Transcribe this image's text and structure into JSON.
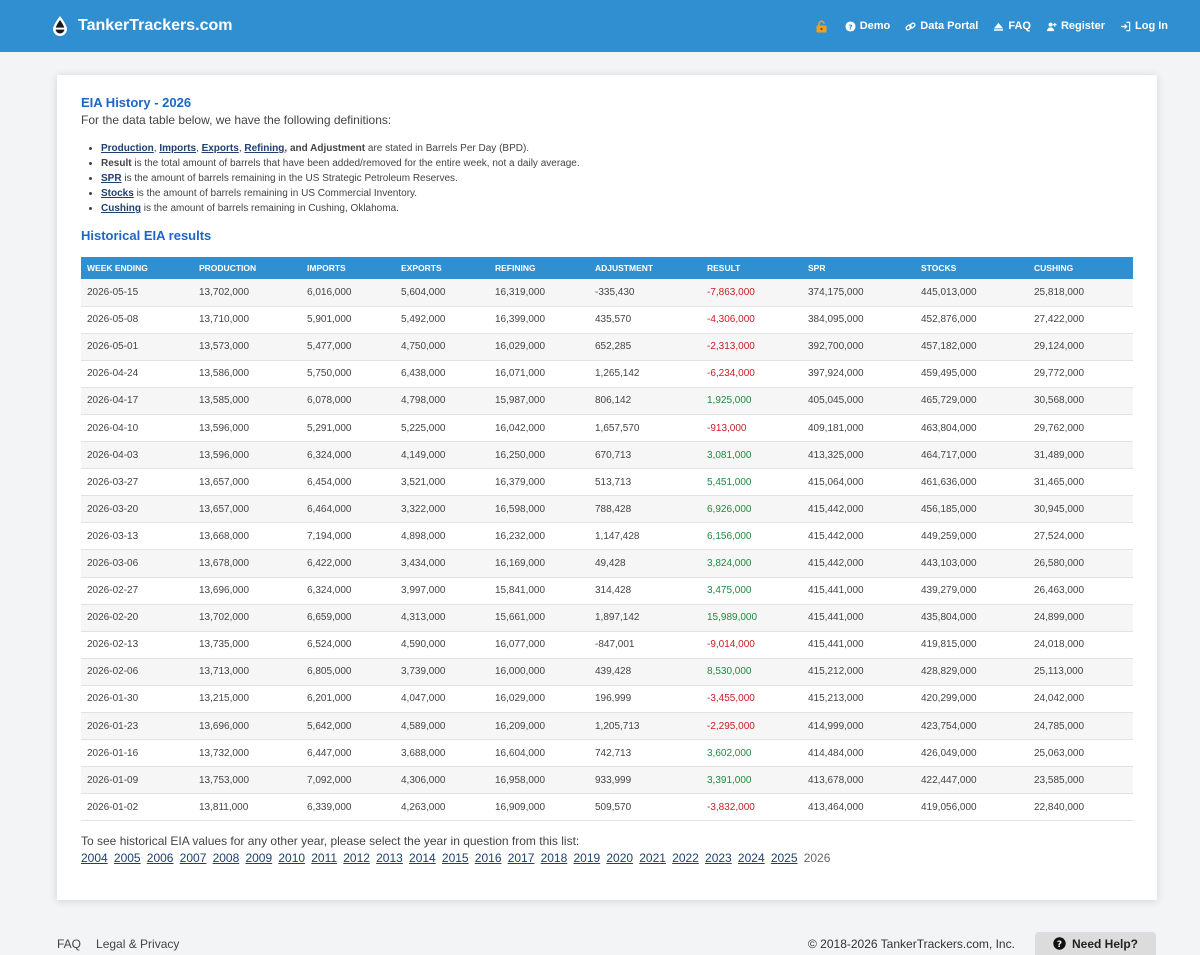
{
  "header": {
    "brand": "TankerTrackers.com",
    "nav": [
      {
        "label": "Demo"
      },
      {
        "label": "Data Portal"
      },
      {
        "label": "FAQ"
      },
      {
        "label": "Register"
      },
      {
        "label": "Log In"
      }
    ]
  },
  "main": {
    "title": "EIA History - 2026",
    "intro": "For the data table below, we have the following definitions:",
    "definitions": {
      "d1_terms": [
        "Production",
        "Imports",
        "Exports",
        "Refining"
      ],
      "d1_tail_bold": "and Adjustment",
      "d1_rest": " are stated in Barrels Per Day (BPD).",
      "d2_term": "Result",
      "d2_rest": " is the total amount of barrels that have been added/removed for the entire week, not a daily average.",
      "d3_term": "SPR",
      "d3_rest": " is the amount of barrels remaining in the US Strategic Petroleum Reserves.",
      "d4_term": "Stocks",
      "d4_rest": " is the amount of barrels remaining in US Commercial Inventory.",
      "d5_term": "Cushing",
      "d5_rest": " is the amount of barrels remaining in Cushing, Oklahoma."
    },
    "section_title": "Historical EIA results",
    "table": {
      "columns": [
        "WEEK ENDING",
        "PRODUCTION",
        "IMPORTS",
        "EXPORTS",
        "REFINING",
        "ADJUSTMENT",
        "RESULT",
        "SPR",
        "STOCKS",
        "CUSHING"
      ],
      "rows": [
        [
          "2026-05-15",
          "13,702,000",
          "6,016,000",
          "5,604,000",
          "16,319,000",
          "-335,430",
          "-7,863,000",
          "374,175,000",
          "445,013,000",
          "25,818,000"
        ],
        [
          "2026-05-08",
          "13,710,000",
          "5,901,000",
          "5,492,000",
          "16,399,000",
          "435,570",
          "-4,306,000",
          "384,095,000",
          "452,876,000",
          "27,422,000"
        ],
        [
          "2026-05-01",
          "13,573,000",
          "5,477,000",
          "4,750,000",
          "16,029,000",
          "652,285",
          "-2,313,000",
          "392,700,000",
          "457,182,000",
          "29,124,000"
        ],
        [
          "2026-04-24",
          "13,586,000",
          "5,750,000",
          "6,438,000",
          "16,071,000",
          "1,265,142",
          "-6,234,000",
          "397,924,000",
          "459,495,000",
          "29,772,000"
        ],
        [
          "2026-04-17",
          "13,585,000",
          "6,078,000",
          "4,798,000",
          "15,987,000",
          "806,142",
          "1,925,000",
          "405,045,000",
          "465,729,000",
          "30,568,000"
        ],
        [
          "2026-04-10",
          "13,596,000",
          "5,291,000",
          "5,225,000",
          "16,042,000",
          "1,657,570",
          "-913,000",
          "409,181,000",
          "463,804,000",
          "29,762,000"
        ],
        [
          "2026-04-03",
          "13,596,000",
          "6,324,000",
          "4,149,000",
          "16,250,000",
          "670,713",
          "3,081,000",
          "413,325,000",
          "464,717,000",
          "31,489,000"
        ],
        [
          "2026-03-27",
          "13,657,000",
          "6,454,000",
          "3,521,000",
          "16,379,000",
          "513,713",
          "5,451,000",
          "415,064,000",
          "461,636,000",
          "31,465,000"
        ],
        [
          "2026-03-20",
          "13,657,000",
          "6,464,000",
          "3,322,000",
          "16,598,000",
          "788,428",
          "6,926,000",
          "415,442,000",
          "456,185,000",
          "30,945,000"
        ],
        [
          "2026-03-13",
          "13,668,000",
          "7,194,000",
          "4,898,000",
          "16,232,000",
          "1,147,428",
          "6,156,000",
          "415,442,000",
          "449,259,000",
          "27,524,000"
        ],
        [
          "2026-03-06",
          "13,678,000",
          "6,422,000",
          "3,434,000",
          "16,169,000",
          "49,428",
          "3,824,000",
          "415,442,000",
          "443,103,000",
          "26,580,000"
        ],
        [
          "2026-02-27",
          "13,696,000",
          "6,324,000",
          "3,997,000",
          "15,841,000",
          "314,428",
          "3,475,000",
          "415,441,000",
          "439,279,000",
          "26,463,000"
        ],
        [
          "2026-02-20",
          "13,702,000",
          "6,659,000",
          "4,313,000",
          "15,661,000",
          "1,897,142",
          "15,989,000",
          "415,441,000",
          "435,804,000",
          "24,899,000"
        ],
        [
          "2026-02-13",
          "13,735,000",
          "6,524,000",
          "4,590,000",
          "16,077,000",
          "-847,001",
          "-9,014,000",
          "415,441,000",
          "419,815,000",
          "24,018,000"
        ],
        [
          "2026-02-06",
          "13,713,000",
          "6,805,000",
          "3,739,000",
          "16,000,000",
          "439,428",
          "8,530,000",
          "415,212,000",
          "428,829,000",
          "25,113,000"
        ],
        [
          "2026-01-30",
          "13,215,000",
          "6,201,000",
          "4,047,000",
          "16,029,000",
          "196,999",
          "-3,455,000",
          "415,213,000",
          "420,299,000",
          "24,042,000"
        ],
        [
          "2026-01-23",
          "13,696,000",
          "5,642,000",
          "4,589,000",
          "16,209,000",
          "1,205,713",
          "-2,295,000",
          "414,999,000",
          "423,754,000",
          "24,785,000"
        ],
        [
          "2026-01-16",
          "13,732,000",
          "6,447,000",
          "3,688,000",
          "16,604,000",
          "742,713",
          "3,602,000",
          "414,484,000",
          "426,049,000",
          "25,063,000"
        ],
        [
          "2026-01-09",
          "13,753,000",
          "7,092,000",
          "4,306,000",
          "16,958,000",
          "933,999",
          "3,391,000",
          "413,678,000",
          "422,447,000",
          "23,585,000"
        ],
        [
          "2026-01-02",
          "13,811,000",
          "6,339,000",
          "4,263,000",
          "16,909,000",
          "509,570",
          "-3,832,000",
          "413,464,000",
          "419,056,000",
          "22,840,000"
        ]
      ]
    },
    "other_years_text": "To see historical EIA values for any other year, please select the year in question from this list:",
    "years": [
      "2004",
      "2005",
      "2006",
      "2007",
      "2008",
      "2009",
      "2010",
      "2011",
      "2012",
      "2013",
      "2014",
      "2015",
      "2016",
      "2017",
      "2018",
      "2019",
      "2020",
      "2021",
      "2022",
      "2023",
      "2024",
      "2025"
    ],
    "current_year": "2026"
  },
  "footer": {
    "links": [
      "FAQ",
      "Legal & Privacy"
    ],
    "copyright": "© 2018-2026 TankerTrackers.com, Inc.",
    "help_label": "Need Help?"
  },
  "colors": {
    "brand_blue": "#2f8fd1",
    "title_blue": "#1d66c4",
    "negative": "#c81d25",
    "positive": "#1e8a3d"
  }
}
